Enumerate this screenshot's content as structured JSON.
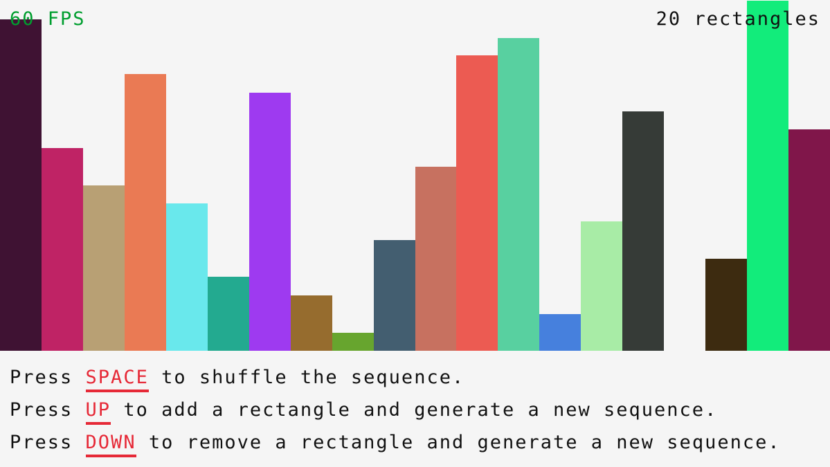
{
  "fps_text": "60 FPS",
  "count_text": "20 rectangles",
  "colors": {
    "fps": "#009e2f",
    "key_highlight": "#e62937",
    "background": "#f5f5f5"
  },
  "bars": [
    {
      "value": 479,
      "color": "#3f1233"
    },
    {
      "value": 293,
      "color": "#bf2365"
    },
    {
      "value": 239,
      "color": "#b8a074"
    },
    {
      "value": 400,
      "color": "#ea7a54"
    },
    {
      "value": 213,
      "color": "#69e8ec"
    },
    {
      "value": 107,
      "color": "#23aa90"
    },
    {
      "value": 373,
      "color": "#9e3af0"
    },
    {
      "value": 80,
      "color": "#966c2e"
    },
    {
      "value": 26,
      "color": "#67a52e"
    },
    {
      "value": 160,
      "color": "#435e70"
    },
    {
      "value": 266,
      "color": "#c77160"
    },
    {
      "value": 427,
      "color": "#ec5b52"
    },
    {
      "value": 452,
      "color": "#58d0a0"
    },
    {
      "value": 53,
      "color": "#4680dd"
    },
    {
      "value": 187,
      "color": "#a8eca6"
    },
    {
      "value": 346,
      "color": "#363b37"
    },
    {
      "value": 0,
      "color": "#f5f5f5"
    },
    {
      "value": 133,
      "color": "#3d2b10"
    },
    {
      "value": 506,
      "color": "#12ec7b"
    },
    {
      "value": 320,
      "color": "#80164a"
    }
  ],
  "instructions": [
    {
      "prefix": "Press ",
      "key": "SPACE",
      "suffix": " to shuffle the sequence."
    },
    {
      "prefix": "Press ",
      "key": "UP",
      "suffix": " to add a rectangle and generate a new sequence."
    },
    {
      "prefix": "Press ",
      "key": "DOWN",
      "suffix": " to remove a rectangle and generate a new sequence."
    }
  ]
}
